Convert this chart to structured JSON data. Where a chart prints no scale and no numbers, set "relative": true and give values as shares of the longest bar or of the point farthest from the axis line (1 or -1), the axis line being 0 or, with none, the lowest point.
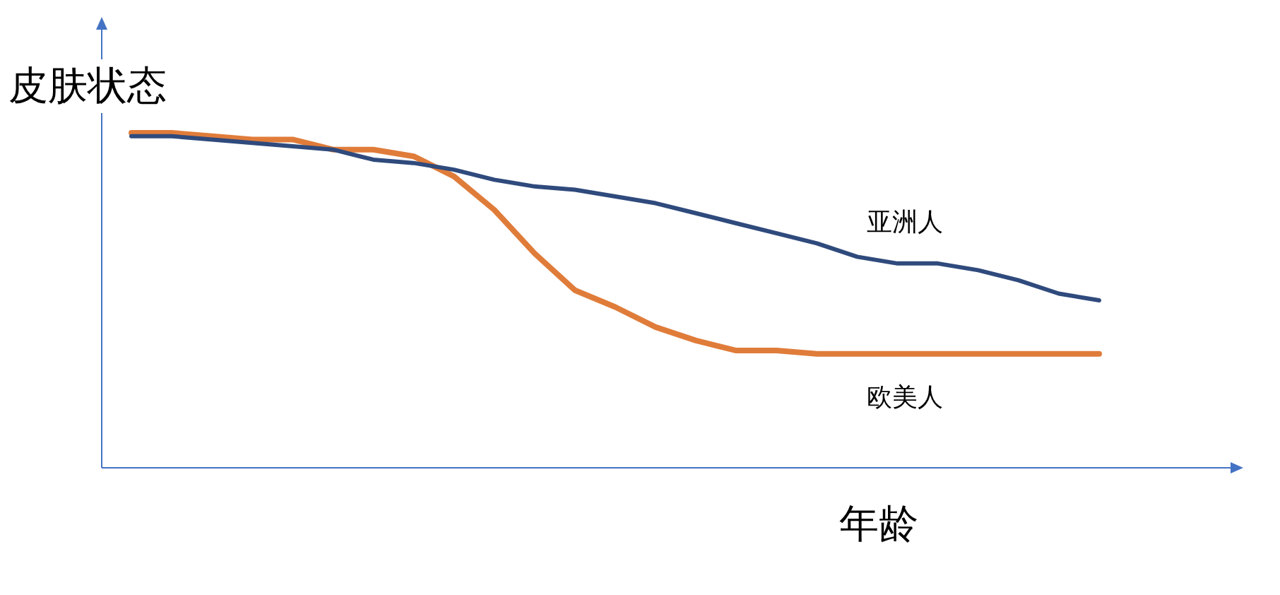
{
  "chart_data": {
    "type": "line",
    "relative": true,
    "ylabel": "皮肤状态",
    "xlabel": "年龄",
    "marker": "none",
    "categories": [
      null,
      null,
      null,
      null,
      null,
      null,
      null,
      null,
      null,
      null,
      null,
      null,
      null,
      null,
      null,
      null,
      null,
      null,
      null,
      null,
      null,
      null,
      null,
      null,
      null
    ],
    "series": [
      {
        "name": "亚洲人",
        "color": "#2f4a7c",
        "values": [
          0.99,
          0.99,
          0.98,
          0.97,
          0.96,
          0.95,
          0.92,
          0.91,
          0.89,
          0.86,
          0.84,
          0.83,
          0.81,
          0.79,
          0.76,
          0.73,
          0.7,
          0.67,
          0.63,
          0.61,
          0.61,
          0.59,
          0.56,
          0.52,
          0.5
        ]
      },
      {
        "name": "欧美人",
        "color": "#e07c3a",
        "values": [
          1.0,
          1.0,
          0.99,
          0.98,
          0.98,
          0.95,
          0.95,
          0.93,
          0.87,
          0.77,
          0.64,
          0.53,
          0.48,
          0.42,
          0.38,
          0.35,
          0.35,
          0.34,
          0.34,
          0.34,
          0.34,
          0.34,
          0.34,
          0.34,
          0.34
        ]
      }
    ]
  }
}
